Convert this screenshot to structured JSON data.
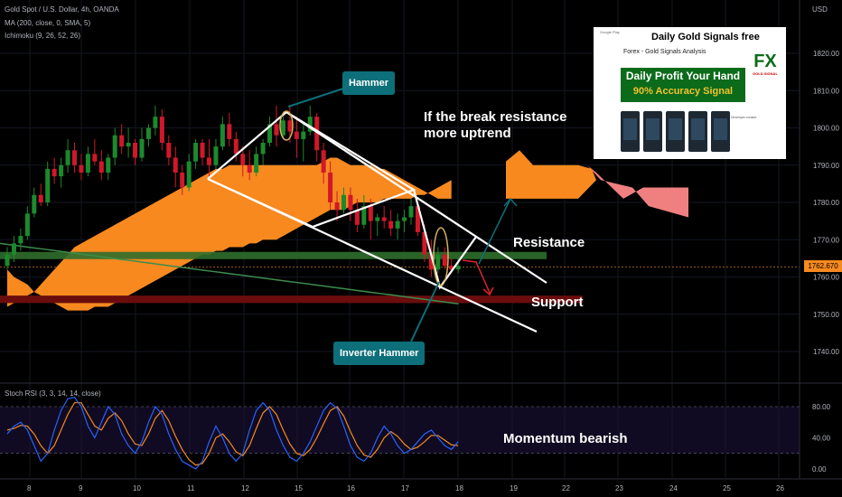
{
  "legend": {
    "symbol": "Gold Spot / U.S. Dollar, 4h, OANDA",
    "ma": "MA (200, close, 0, SMA, 5)",
    "ichimoku": "Ichimoku (9, 26, 52, 26)",
    "stoch": "Stoch RSI (3, 3, 14, 14, close)"
  },
  "currency": "USD",
  "price_label": "1762.670",
  "annotations": {
    "hammer": "Hammer",
    "inverter_hammer": "Inverter Hammer",
    "break_line1": "If the break resistance",
    "break_line2": "more uptrend",
    "resistance": "Resistance",
    "support": "Support",
    "momentum": "Momentum bearish"
  },
  "ad": {
    "app_name": "Google Play",
    "title": "Daily Gold Signals free",
    "subtitle": "Forex - Gold Signals Analysis",
    "banner_line1": "Daily Profit Your Hand",
    "banner_line2": "90% Accuracy Signal",
    "logo_text": "FX",
    "logo_sub": "GOLD SIGNAL",
    "developer": "Developer contact"
  },
  "colors": {
    "bull": "#1c8a2c",
    "bear": "#d0182a",
    "cloud": "#f7891f",
    "cloud_bear": "#f08080",
    "resistance_band": "#2f6e2b",
    "support_band": "#6b0d0d",
    "ma": "#3c8c4c",
    "stoch_k": "#2962ff",
    "stoch_d": "#f7891f",
    "callout": "#0d6f79"
  },
  "chart_data": {
    "type": "candlestick",
    "title": "Gold Spot / U.S. Dollar, 4h, OANDA",
    "x_ticks": [
      "8",
      "9",
      "10",
      "11",
      "12",
      "15",
      "16",
      "17",
      "18",
      "19",
      "22",
      "23",
      "24",
      "25",
      "26"
    ],
    "y_ticks": [
      1740,
      1750,
      1760,
      1770,
      1780,
      1790,
      1800,
      1810,
      1820
    ],
    "ylim": [
      1732,
      1834
    ],
    "candles": [
      [
        1763,
        1768,
        1762,
        1766
      ],
      [
        1766,
        1771,
        1764,
        1769
      ],
      [
        1769,
        1773,
        1767,
        1771
      ],
      [
        1771,
        1779,
        1770,
        1777
      ],
      [
        1777,
        1784,
        1776,
        1782
      ],
      [
        1782,
        1785,
        1779,
        1780
      ],
      [
        1780,
        1791,
        1779,
        1789
      ],
      [
        1789,
        1792,
        1785,
        1787
      ],
      [
        1787,
        1792,
        1784,
        1790
      ],
      [
        1790,
        1797,
        1788,
        1794
      ],
      [
        1794,
        1796,
        1788,
        1790
      ],
      [
        1790,
        1793,
        1786,
        1788
      ],
      [
        1788,
        1795,
        1787,
        1793
      ],
      [
        1793,
        1797,
        1790,
        1791
      ],
      [
        1791,
        1794,
        1786,
        1788
      ],
      [
        1788,
        1793,
        1786,
        1792
      ],
      [
        1792,
        1800,
        1790,
        1798
      ],
      [
        1798,
        1801,
        1793,
        1795
      ],
      [
        1795,
        1800,
        1792,
        1796
      ],
      [
        1796,
        1797,
        1790,
        1792
      ],
      [
        1792,
        1800,
        1791,
        1797
      ],
      [
        1797,
        1801,
        1795,
        1800
      ],
      [
        1800,
        1806,
        1798,
        1803
      ],
      [
        1803,
        1805,
        1794,
        1796
      ],
      [
        1796,
        1798,
        1790,
        1792
      ],
      [
        1792,
        1795,
        1784,
        1788
      ],
      [
        1788,
        1790,
        1782,
        1784
      ],
      [
        1784,
        1793,
        1783,
        1791
      ],
      [
        1791,
        1797,
        1789,
        1796
      ],
      [
        1796,
        1797,
        1790,
        1792
      ],
      [
        1792,
        1797,
        1787,
        1790
      ],
      [
        1790,
        1797,
        1789,
        1795
      ],
      [
        1795,
        1803,
        1794,
        1801
      ],
      [
        1801,
        1804,
        1795,
        1797
      ],
      [
        1797,
        1799,
        1791,
        1793
      ],
      [
        1793,
        1795,
        1787,
        1790
      ],
      [
        1790,
        1794,
        1786,
        1788
      ],
      [
        1788,
        1795,
        1787,
        1793
      ],
      [
        1793,
        1797,
        1790,
        1796
      ],
      [
        1796,
        1803,
        1795,
        1801
      ],
      [
        1801,
        1806,
        1795,
        1798
      ],
      [
        1798,
        1803,
        1797,
        1802
      ],
      [
        1802,
        1806,
        1796,
        1799
      ],
      [
        1799,
        1803,
        1792,
        1797
      ],
      [
        1797,
        1801,
        1791,
        1799
      ],
      [
        1799,
        1806,
        1798,
        1803
      ],
      [
        1803,
        1804,
        1791,
        1794
      ],
      [
        1794,
        1796,
        1785,
        1788
      ],
      [
        1788,
        1791,
        1778,
        1780
      ],
      [
        1780,
        1783,
        1775,
        1778
      ],
      [
        1778,
        1784,
        1777,
        1782
      ],
      [
        1782,
        1784,
        1775,
        1778
      ],
      [
        1778,
        1781,
        1772,
        1774
      ],
      [
        1774,
        1782,
        1773,
        1779
      ],
      [
        1779,
        1781,
        1770,
        1775
      ],
      [
        1775,
        1777,
        1771,
        1776
      ],
      [
        1776,
        1779,
        1773,
        1775
      ],
      [
        1775,
        1778,
        1771,
        1773
      ],
      [
        1773,
        1777,
        1770,
        1775
      ],
      [
        1775,
        1778,
        1772,
        1776
      ],
      [
        1776,
        1781,
        1774,
        1779
      ],
      [
        1779,
        1780,
        1771,
        1772
      ],
      [
        1772,
        1774,
        1764,
        1766
      ],
      [
        1766,
        1770,
        1760,
        1762
      ],
      [
        1762,
        1768,
        1761,
        1766
      ],
      [
        1766,
        1768,
        1762,
        1763
      ],
      [
        1763,
        1765,
        1761,
        1762
      ],
      [
        1762,
        1765,
        1761,
        1763
      ]
    ],
    "cloud_span_a": [
      1752,
      1753,
      1754,
      1755,
      1756,
      1758,
      1760,
      1762,
      1764,
      1766,
      1768,
      1769,
      1770,
      1771,
      1772,
      1773,
      1774,
      1775,
      1776,
      1777,
      1778,
      1779,
      1780,
      1781,
      1782,
      1783,
      1784,
      1785,
      1786,
      1787,
      1788,
      1789,
      1789,
      1790,
      1790,
      1790,
      1790,
      1790,
      1790,
      1790,
      1790,
      1790,
      1790,
      1790,
      1790,
      1790,
      1790,
      1791,
      1792,
      1792,
      1791,
      1790,
      1790,
      1790,
      1790,
      1789,
      1789,
      1788,
      1787,
      1786,
      1785,
      1784,
      1783,
      1782,
      1781,
      1781,
      1781
    ],
    "cloud_span_b": [
      1762,
      1760,
      1759,
      1758,
      1756,
      1755,
      1754,
      1753,
      1752,
      1751,
      1751,
      1751,
      1751,
      1752,
      1752,
      1752,
      1753,
      1754,
      1755,
      1756,
      1757,
      1758,
      1759,
      1760,
      1761,
      1762,
      1763,
      1764,
      1765,
      1766,
      1766,
      1767,
      1767,
      1768,
      1768,
      1768,
      1769,
      1769,
      1770,
      1770,
      1770,
      1771,
      1772,
      1773,
      1774,
      1775,
      1776,
      1777,
      1778,
      1778,
      1778,
      1779,
      1780,
      1780,
      1780,
      1780,
      1781,
      1781,
      1781,
      1781,
      1781,
      1782,
      1782,
      1783,
      1784,
      1785,
      1786
    ],
    "ma200": [
      1769,
      1768.7,
      1768.4,
      1768.1,
      1767.8,
      1767.5,
      1767.2,
      1766.9,
      1766.6,
      1766.3,
      1766,
      1765.7,
      1765.4,
      1765.1,
      1764.8,
      1764.5,
      1764.2,
      1763.9,
      1763.6,
      1763.3,
      1763,
      1762.7,
      1762.4,
      1762.1,
      1761.8,
      1761.5,
      1761.2,
      1760.9,
      1760.6,
      1760.3,
      1760,
      1759.7,
      1759.4,
      1759.1,
      1758.8,
      1758.5,
      1758.2,
      1757.9,
      1757.6,
      1757.3,
      1757,
      1756.7,
      1756.4,
      1756.1,
      1755.8,
      1755.5,
      1755.2,
      1754.9,
      1754.6,
      1754.3,
      1754,
      1753.7,
      1753.4,
      1753.1,
      1752.8
    ],
    "resistance": 1766,
    "support": [
      1753,
      1755
    ],
    "current_price": 1762.67,
    "stoch_rsi": {
      "ylim": [
        0,
        100
      ],
      "y_ticks": [
        0,
        40,
        80
      ],
      "k": [
        45,
        55,
        60,
        50,
        30,
        10,
        20,
        50,
        75,
        90,
        92,
        80,
        55,
        40,
        60,
        80,
        70,
        45,
        30,
        20,
        35,
        60,
        80,
        70,
        45,
        25,
        10,
        5,
        0,
        10,
        35,
        55,
        40,
        20,
        10,
        20,
        50,
        75,
        85,
        75,
        50,
        30,
        15,
        10,
        20,
        35,
        55,
        75,
        85,
        78,
        55,
        30,
        15,
        10,
        20,
        40,
        55,
        45,
        30,
        20,
        25,
        35,
        45,
        50,
        40,
        30,
        25,
        35
      ],
      "d": [
        50,
        52,
        56,
        55,
        45,
        30,
        20,
        30,
        50,
        70,
        85,
        85,
        70,
        55,
        50,
        65,
        72,
        62,
        45,
        32,
        30,
        45,
        65,
        75,
        62,
        42,
        25,
        12,
        5,
        7,
        20,
        40,
        45,
        35,
        22,
        17,
        30,
        52,
        72,
        80,
        70,
        50,
        32,
        20,
        17,
        25,
        40,
        58,
        75,
        80,
        68,
        48,
        30,
        18,
        15,
        25,
        40,
        48,
        42,
        32,
        25,
        28,
        35,
        43,
        43,
        37,
        31,
        30
      ]
    }
  }
}
